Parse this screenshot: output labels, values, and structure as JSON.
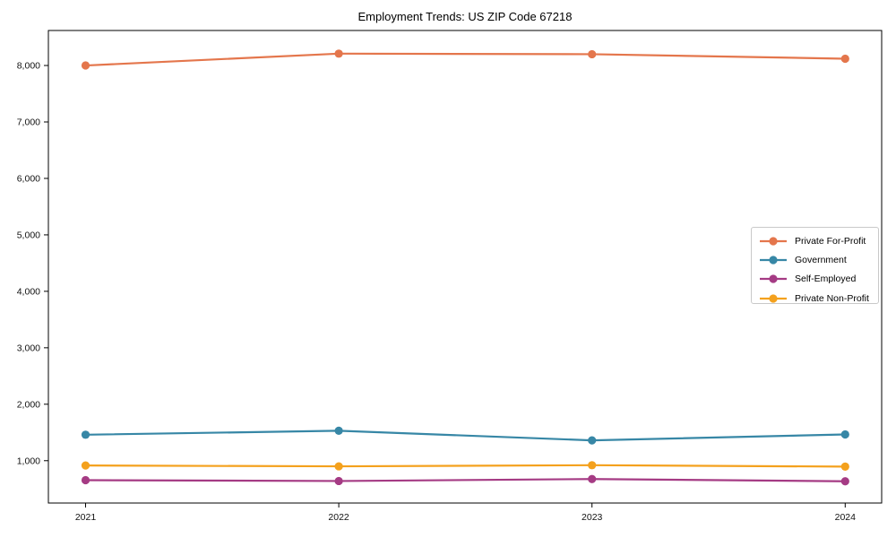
{
  "chart_data": {
    "type": "line",
    "title": "Employment Trends: US ZIP Code 67218",
    "xlabel": "",
    "ylabel": "",
    "categories": [
      "2021",
      "2022",
      "2023",
      "2024"
    ],
    "series": [
      {
        "name": "Private For-Profit",
        "color": "#e4764c",
        "values": [
          8000,
          8210,
          8200,
          8120
        ]
      },
      {
        "name": "Government",
        "color": "#3787a6",
        "values": [
          1460,
          1530,
          1360,
          1465
        ]
      },
      {
        "name": "Self-Employed",
        "color": "#a53b84",
        "values": [
          655,
          640,
          675,
          635
        ]
      },
      {
        "name": "Private Non-Profit",
        "color": "#f4a11d",
        "values": [
          915,
          900,
          920,
          895
        ]
      }
    ],
    "yticks": [
      1000,
      2000,
      3000,
      4000,
      5000,
      6000,
      7000,
      8000
    ],
    "ytick_labels": [
      "1,000",
      "2,000",
      "3,000",
      "4,000",
      "5,000",
      "6,000",
      "7,000",
      "8,000"
    ],
    "ylim": [
      250,
      8620
    ],
    "grid": false,
    "legend_position": "center right",
    "marker": "o"
  }
}
